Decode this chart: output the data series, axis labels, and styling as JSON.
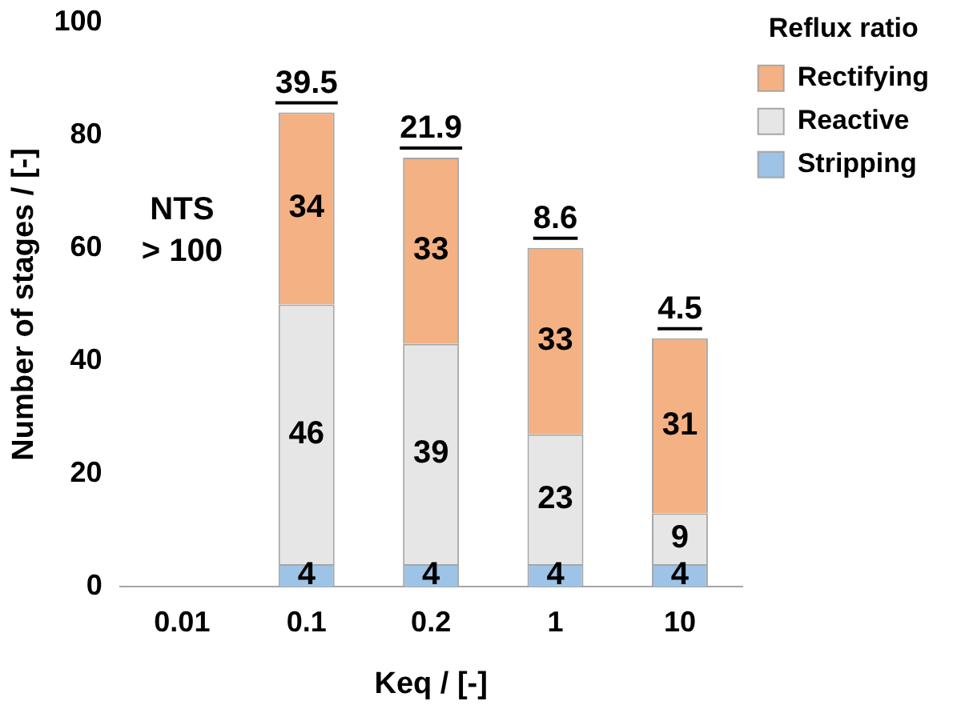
{
  "chart_data": {
    "type": "bar",
    "stacked": true,
    "xlabel": "Keq / [-]",
    "ylabel": "Number of stages / [-]",
    "legend_title": "Reflux ratio",
    "legend": "top right",
    "categories": [
      "0.01",
      "0.1",
      "0.2",
      "1",
      "10"
    ],
    "series": [
      {
        "name": "Stripping",
        "color": "#9dc3e6",
        "values": [
          null,
          4,
          4,
          4,
          4
        ]
      },
      {
        "name": "Reactive",
        "color": "#e7e6e6",
        "values": [
          null,
          46,
          39,
          23,
          9
        ]
      },
      {
        "name": "Rectifying",
        "color": "#f4b183",
        "values": [
          null,
          34,
          33,
          33,
          31
        ]
      }
    ],
    "data_labels": true,
    "ylim": [
      0,
      100
    ],
    "yticks": [
      0,
      20,
      40,
      60,
      80,
      100
    ],
    "grid": false,
    "annotations": [
      "NTS > 100",
      {
        "text": "39.5",
        "x": "0.1",
        "y": 84
      },
      {
        "text": "21.9",
        "x": "0.2",
        "y": 76
      },
      {
        "text": "8.6",
        "x": "1",
        "y": 60
      },
      {
        "text": "4.5",
        "x": "10",
        "y": 44
      }
    ]
  }
}
